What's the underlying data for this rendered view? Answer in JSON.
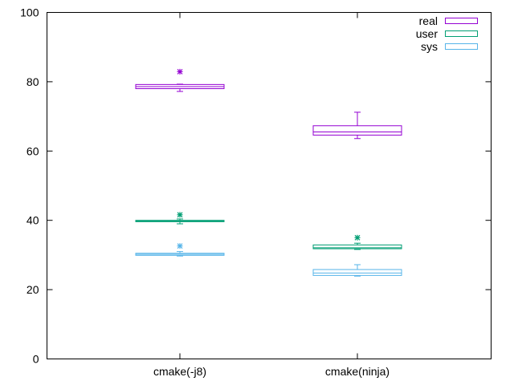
{
  "chart_data": {
    "type": "boxplot",
    "title": "",
    "xlabel": "",
    "ylabel": "",
    "ylim": [
      0,
      100
    ],
    "yticks": [
      0,
      20,
      40,
      60,
      80,
      100
    ],
    "grid": false,
    "legend_position": "top-right",
    "categories": [
      "cmake(-j8)",
      "cmake(ninja)"
    ],
    "series": [
      {
        "name": "real",
        "color": "#9400d3",
        "boxes": [
          {
            "category": "cmake(-j8)",
            "whisker_low": 77.2,
            "q1": 78.0,
            "median": 78.6,
            "q3": 79.2,
            "whisker_high": 79.3,
            "outliers": [
              82.9
            ]
          },
          {
            "category": "cmake(ninja)",
            "whisker_low": 63.6,
            "q1": 64.6,
            "median": 65.5,
            "q3": 67.3,
            "whisker_high": 71.2,
            "outliers": []
          }
        ]
      },
      {
        "name": "user",
        "color": "#009e73",
        "boxes": [
          {
            "category": "cmake(-j8)",
            "whisker_low": 39.0,
            "q1": 39.6,
            "median": 39.8,
            "q3": 40.0,
            "whisker_high": 40.4,
            "outliers": [
              41.6
            ]
          },
          {
            "category": "cmake(ninja)",
            "whisker_low": 31.6,
            "q1": 31.8,
            "median": 32.1,
            "q3": 32.9,
            "whisker_high": 33.4,
            "outliers": [
              35.0
            ]
          }
        ]
      },
      {
        "name": "sys",
        "color": "#56b4e9",
        "boxes": [
          {
            "category": "cmake(-j8)",
            "whisker_low": 29.7,
            "q1": 29.9,
            "median": 30.2,
            "q3": 30.5,
            "whisker_high": 31.0,
            "outliers": [
              32.6
            ]
          },
          {
            "category": "cmake(ninja)",
            "whisker_low": 23.9,
            "q1": 24.1,
            "median": 24.8,
            "q3": 25.8,
            "whisker_high": 27.2,
            "outliers": []
          }
        ]
      }
    ]
  }
}
